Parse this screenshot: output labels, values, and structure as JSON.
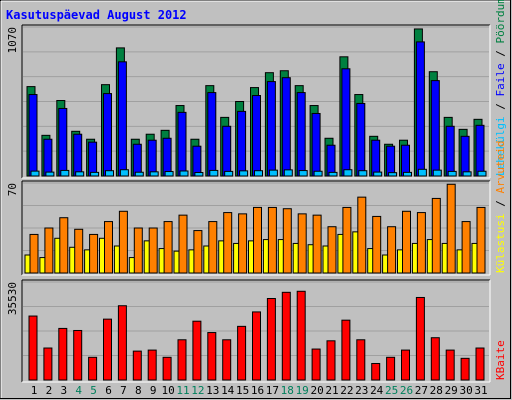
{
  "legend_separator": " / ",
  "chart_data": [
    {
      "type": "bar",
      "title": "Kasutuspäevad August 2012",
      "ylim": [
        0,
        1070
      ],
      "yticks": [
        1070
      ],
      "series": [
        {
          "name": "Pöördumisi",
          "color": "#008040",
          "values": [
            642,
            292,
            542,
            321,
            264,
            656,
            920,
            264,
            300,
            328,
            506,
            264,
            649,
            421,
            535,
            635,
            742,
            756,
            649,
            506,
            271,
            856,
            585,
            285,
            228,
            257,
            1056,
            749,
            421,
            335,
            407
          ]
        },
        {
          "name": "Faile",
          "color": "#0000ff",
          "values": [
            585,
            264,
            485,
            300,
            243,
            592,
            820,
            228,
            257,
            271,
            457,
            214,
            599,
            357,
            464,
            578,
            678,
            706,
            599,
            449,
            221,
            770,
            521,
            257,
            214,
            221,
            963,
            685,
            357,
            285,
            364
          ]
        },
        {
          "name": "Lehekülgi",
          "color": "#00c0ff",
          "values": [
            35,
            28,
            40,
            30,
            26,
            38,
            45,
            27,
            30,
            32,
            36,
            25,
            40,
            33,
            37,
            38,
            42,
            44,
            39,
            34,
            26,
            45,
            38,
            28,
            24,
            26,
            48,
            42,
            33,
            30,
            34
          ]
        }
      ]
    },
    {
      "type": "bar",
      "ylim": [
        0,
        70
      ],
      "yticks": [
        70
      ],
      "series": [
        {
          "name": "Külastusi",
          "color": "#ffff00",
          "values": [
            14,
            12,
            27,
            20,
            18,
            27,
            21,
            12,
            25,
            19,
            17,
            18,
            21,
            25,
            23,
            25,
            26,
            26,
            23,
            22,
            21,
            30,
            32,
            19,
            14,
            18,
            23,
            26,
            23,
            18,
            23
          ]
        },
        {
          "name": "Arvuteid",
          "color": "#ff8000",
          "values": [
            30,
            35,
            43,
            34,
            30,
            40,
            48,
            35,
            35,
            40,
            45,
            33,
            40,
            47,
            46,
            51,
            51,
            50,
            46,
            45,
            36,
            51,
            59,
            44,
            36,
            48,
            47,
            58,
            69,
            40,
            51
          ]
        }
      ]
    },
    {
      "type": "bar",
      "ylim": [
        0,
        35530
      ],
      "yticks": [
        35530
      ],
      "categories": [
        "1",
        "2",
        "3",
        "4",
        "5",
        "6",
        "7",
        "8",
        "9",
        "10",
        "11",
        "12",
        "13",
        "14",
        "15",
        "16",
        "17",
        "18",
        "19",
        "20",
        "21",
        "22",
        "23",
        "24",
        "25",
        "26",
        "27",
        "28",
        "29",
        "30",
        "31"
      ],
      "category_colors": [
        "#000000",
        "#000000",
        "#000000",
        "#00805c",
        "#00805c",
        "#000000",
        "#000000",
        "#000000",
        "#000000",
        "#000000",
        "#00805c",
        "#00805c",
        "#000000",
        "#000000",
        "#000000",
        "#000000",
        "#000000",
        "#00805c",
        "#00805c",
        "#000000",
        "#000000",
        "#000000",
        "#000000",
        "#000000",
        "#00805c",
        "#00805c",
        "#000000",
        "#000000",
        "#000000",
        "#000000",
        "#000000"
      ],
      "series": [
        {
          "name": "KBaite",
          "color": "#ff0000",
          "values": [
            23188,
            11594,
            18700,
            17952,
            8228,
            22066,
            26928,
            10472,
            10846,
            8228,
            14586,
            21318,
            17204,
            14586,
            19448,
            24684,
            29546,
            31790,
            32164,
            11220,
            14212,
            21692,
            14586,
            5984,
            8228,
            10846,
            29920,
            15334,
            10846,
            7854,
            11594
          ]
        }
      ]
    }
  ]
}
